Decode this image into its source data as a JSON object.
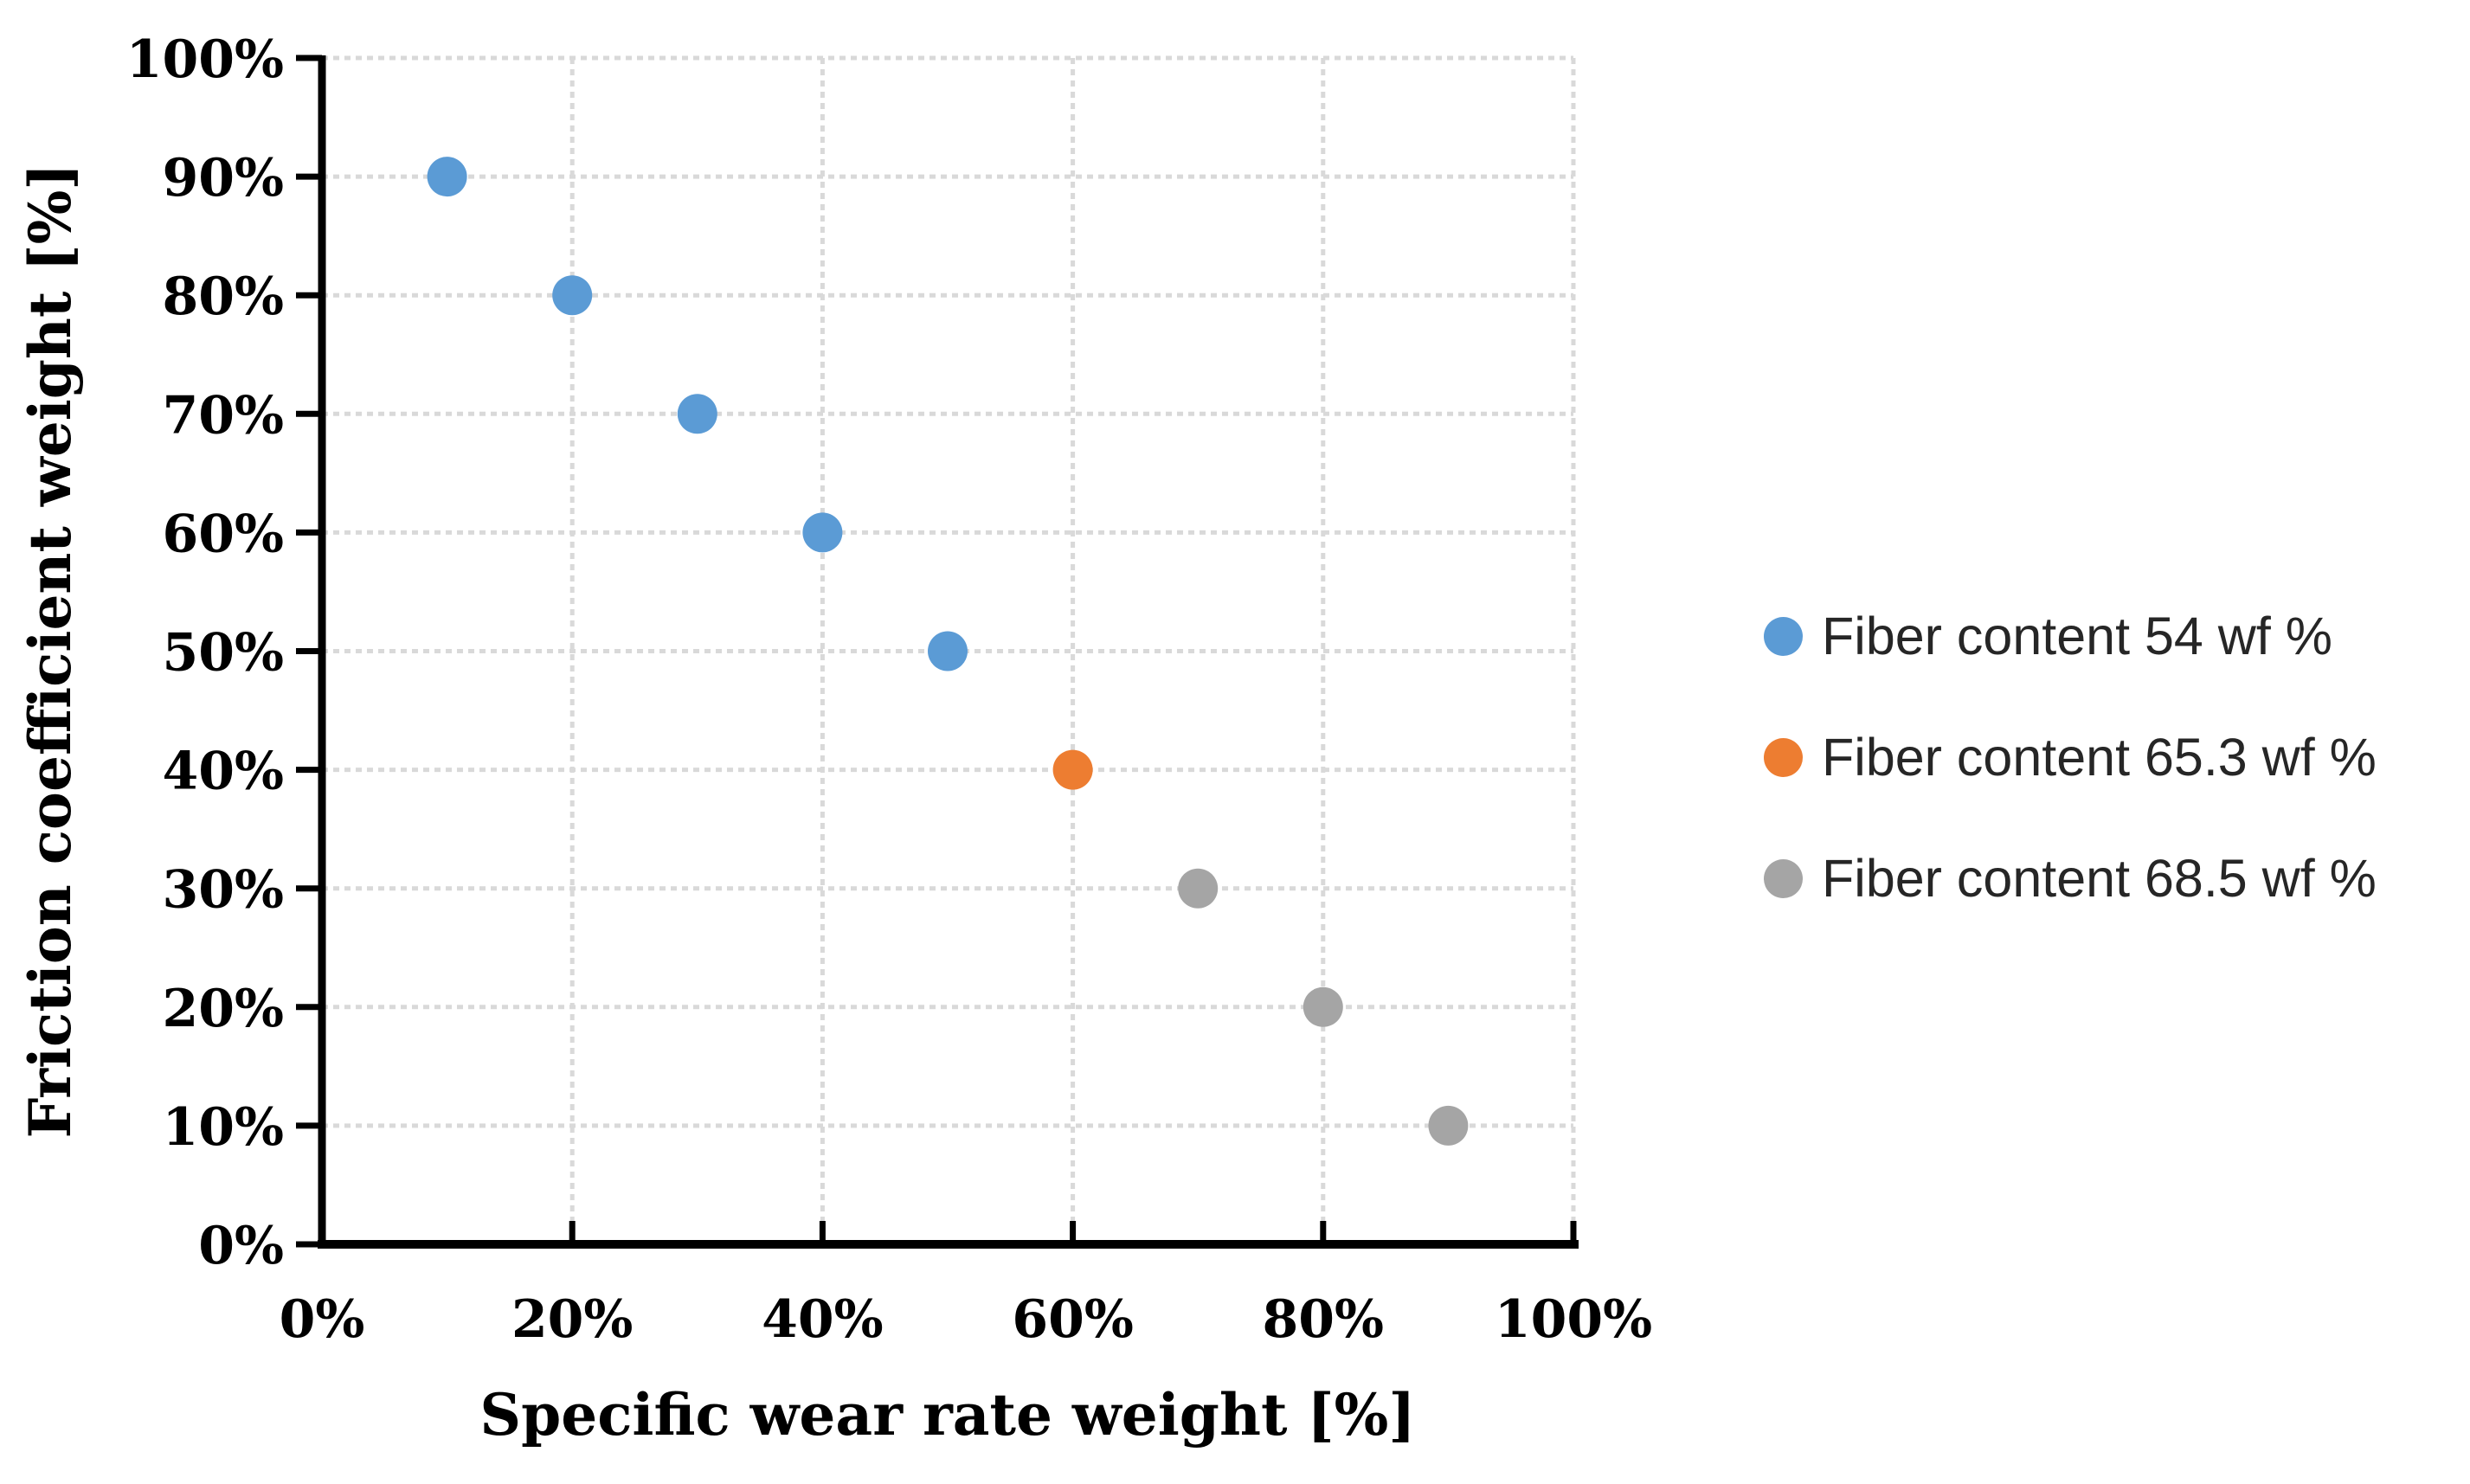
{
  "chart_data": {
    "type": "scatter",
    "title": "",
    "xlabel": "Specific wear rate weight [%]",
    "ylabel": "Friction coefficient weight [%]",
    "xlim": [
      0,
      100
    ],
    "ylim": [
      0,
      100
    ],
    "x_ticks": [
      0,
      20,
      40,
      60,
      80,
      100
    ],
    "x_tick_labels": [
      "0%",
      "20%",
      "40%",
      "60%",
      "80%",
      "100%"
    ],
    "y_ticks": [
      0,
      10,
      20,
      30,
      40,
      50,
      60,
      70,
      80,
      90,
      100
    ],
    "y_tick_labels": [
      "0%",
      "10%",
      "20%",
      "30%",
      "40%",
      "50%",
      "60%",
      "70%",
      "80%",
      "90%",
      "100%"
    ],
    "x_gridlines": [
      20,
      40,
      60,
      80,
      100
    ],
    "y_gridlines": [
      10,
      20,
      30,
      40,
      50,
      60,
      70,
      80,
      90,
      100
    ],
    "grid": {
      "style": "dashed",
      "color": "#D9D9D9",
      "shown": true
    },
    "axis_color": "#000000",
    "background_color": "#FFFFFF",
    "legend_position": "right",
    "legend_text_color": "#262626",
    "series": [
      {
        "name": "Fiber content 54 wf %",
        "color": "#5B9BD5",
        "points": [
          [
            10,
            90
          ],
          [
            20,
            80
          ],
          [
            30,
            70
          ],
          [
            40,
            60
          ],
          [
            50,
            50
          ]
        ]
      },
      {
        "name": "Fiber content 65.3 wf %",
        "color": "#ED7D31",
        "points": [
          [
            60,
            40
          ]
        ]
      },
      {
        "name": "Fiber content 68.5 wf %",
        "color": "#A5A5A5",
        "points": [
          [
            70,
            30
          ],
          [
            80,
            20
          ],
          [
            90,
            10
          ]
        ]
      }
    ]
  }
}
